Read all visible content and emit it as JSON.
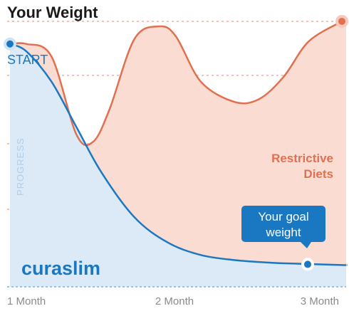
{
  "chart_data": {
    "type": "area",
    "title": "Your Weight",
    "start_label": "START",
    "ylabel": "PROGRESS",
    "x_ticks": [
      "1 Month",
      "2 Month",
      "3 Month"
    ],
    "xlim": [
      1,
      3
    ],
    "ylim": [
      0,
      1
    ],
    "grid": "horizontal-dashed",
    "series": [
      {
        "name": "Restrictive Diets",
        "label_lines": [
          "Restrictive",
          "Diets"
        ],
        "color": "#e07150",
        "fill": "#fbdcd3",
        "x": [
          1.0,
          1.1,
          1.25,
          1.4,
          1.5,
          1.6,
          1.75,
          1.9,
          2.0,
          2.15,
          2.35,
          2.5,
          2.65,
          2.8,
          3.0
        ],
        "y": [
          0.91,
          0.91,
          0.86,
          0.55,
          0.52,
          0.65,
          0.93,
          0.98,
          0.94,
          0.76,
          0.68,
          0.69,
          0.78,
          0.92,
          1.0
        ]
      },
      {
        "name": "curaslim",
        "color": "#1a78c2",
        "fill": "#dceaf7",
        "x": [
          1.0,
          1.1,
          1.25,
          1.4,
          1.55,
          1.75,
          1.95,
          2.15,
          2.35,
          2.55,
          2.75,
          3.0,
          3.1
        ],
        "y": [
          0.91,
          0.88,
          0.76,
          0.58,
          0.4,
          0.22,
          0.12,
          0.07,
          0.05,
          0.04,
          0.035,
          0.03,
          0.03
        ]
      }
    ],
    "annotation": {
      "lines": [
        "Your goal",
        "weight"
      ],
      "x": 3.0,
      "y": 0.03
    }
  },
  "colors": {
    "brand": "#1a78c2",
    "restrictive": "#e07150",
    "brand_fill": "#dceaf7",
    "restrictive_fill": "#fbdcd3",
    "grid": "#e9a08a",
    "baseline": "#7fb0dc"
  }
}
